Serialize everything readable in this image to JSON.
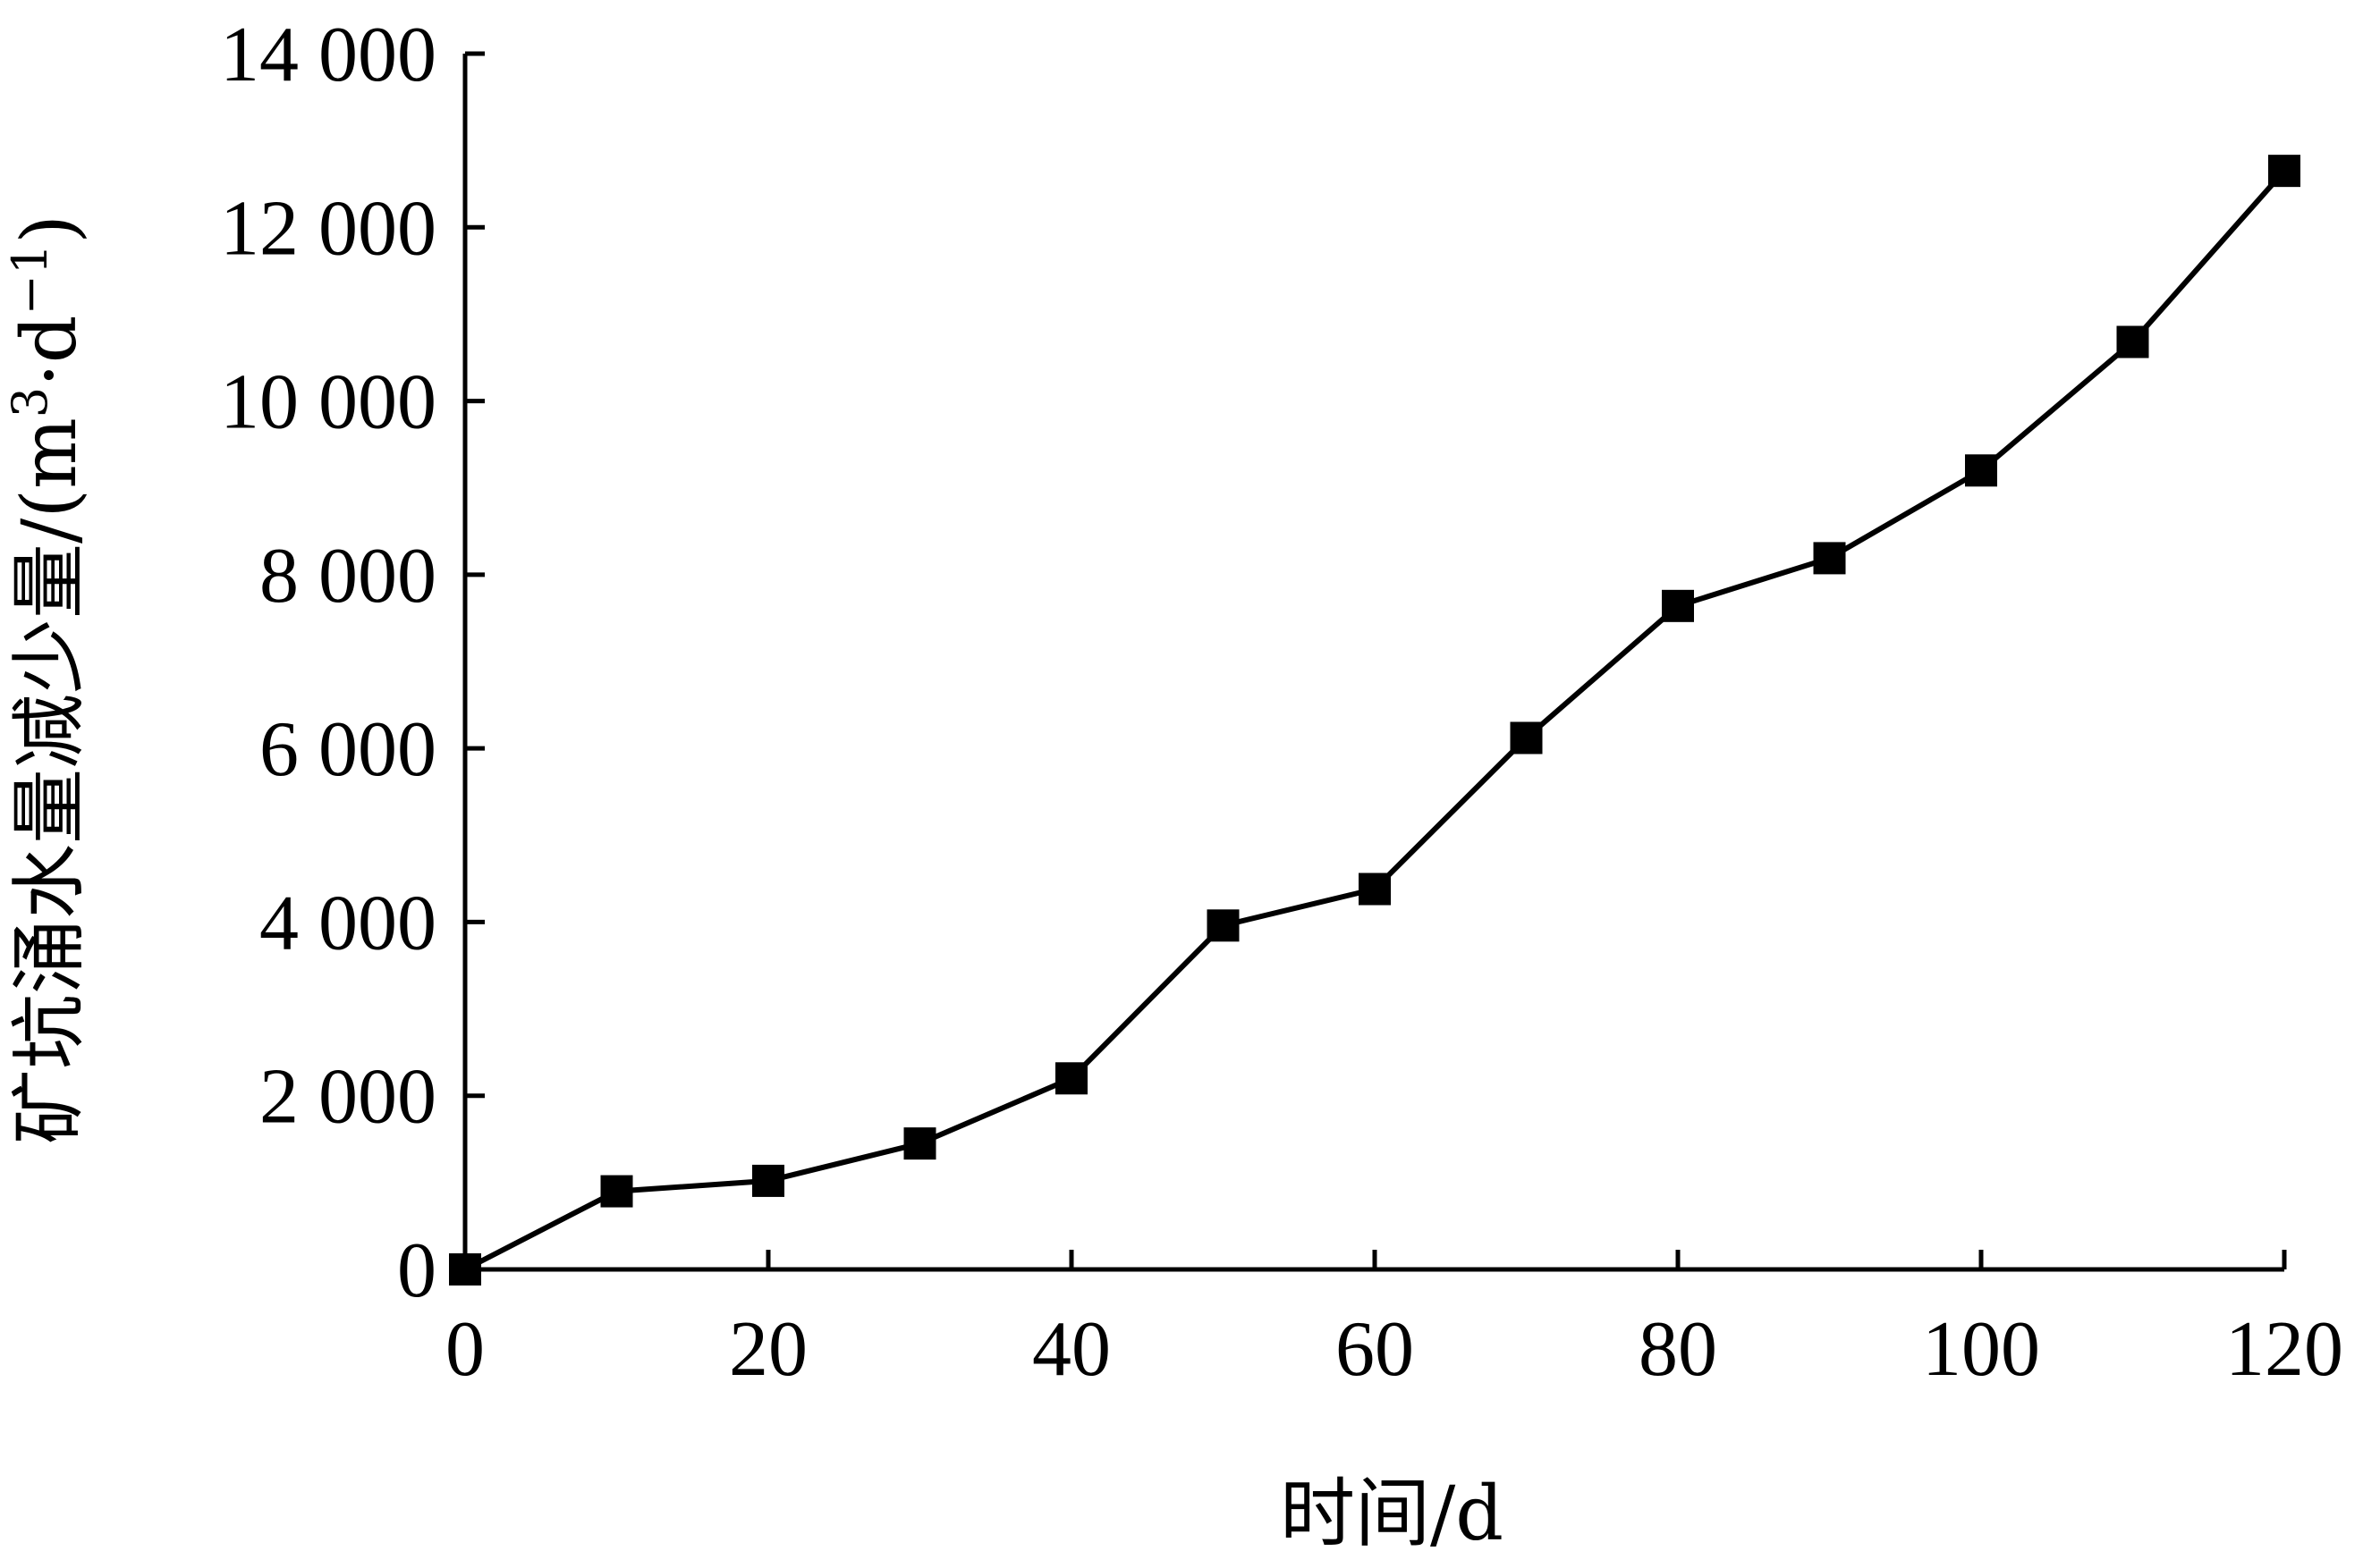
{
  "chart_data": {
    "type": "line",
    "title": "",
    "xlabel": "时间/d",
    "ylabel": "矿坑涌水量减少量/(m³·d⁻¹)",
    "ylabel_parts": {
      "main": "矿坑涌水量减少量/(m",
      "sup1": "3",
      "mid": "·d",
      "sup2": "−1",
      "end": ")"
    },
    "xlim": [
      0,
      120
    ],
    "ylim": [
      0,
      14000
    ],
    "x_ticks": [
      0,
      20,
      40,
      60,
      80,
      100,
      120
    ],
    "x_tick_labels": [
      "0",
      "20",
      "40",
      "60",
      "80",
      "100",
      "120"
    ],
    "y_ticks": [
      0,
      2000,
      4000,
      6000,
      8000,
      10000,
      12000,
      14000
    ],
    "y_tick_labels": [
      "0",
      "2 000",
      "4 000",
      "6 000",
      "8 000",
      "10 000",
      "12 000",
      "14 000"
    ],
    "grid": false,
    "legend": "none",
    "series": [
      {
        "x": [
          0,
          10,
          20,
          30,
          40,
          50,
          60,
          70,
          80,
          90,
          100,
          110,
          120
        ],
        "values": [
          0,
          900,
          1020,
          1450,
          2200,
          3960,
          4380,
          6120,
          7640,
          8190,
          9200,
          10680,
          12650
        ],
        "color": "#000000",
        "marker": "square"
      }
    ]
  }
}
